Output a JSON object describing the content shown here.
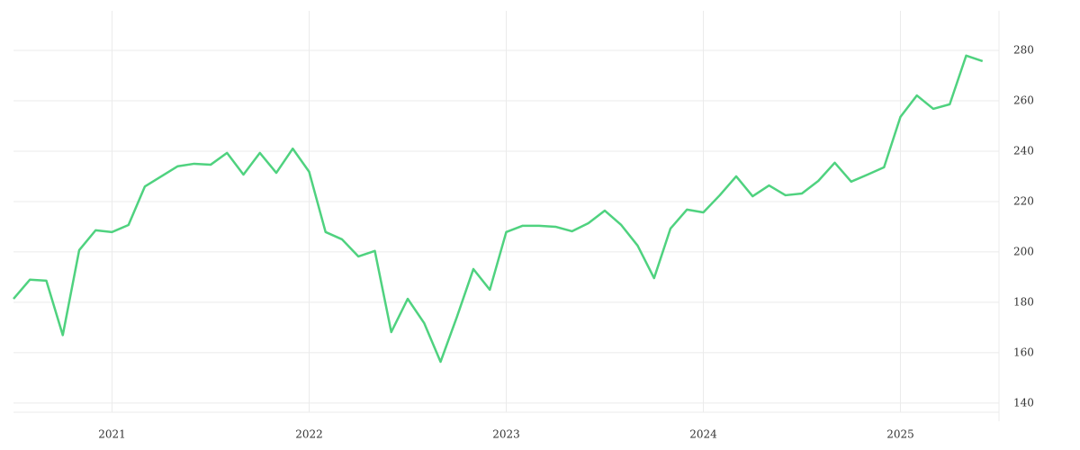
{
  "chart_data": {
    "type": "line",
    "x": [
      "2020-07",
      "2020-08",
      "2020-09",
      "2020-10",
      "2020-11",
      "2020-12",
      "2021-01",
      "2021-02",
      "2021-03",
      "2021-04",
      "2021-05",
      "2021-06",
      "2021-07",
      "2021-08",
      "2021-09",
      "2021-10",
      "2021-11",
      "2021-12",
      "2022-01",
      "2022-02",
      "2022-03",
      "2022-04",
      "2022-05",
      "2022-06",
      "2022-07",
      "2022-08",
      "2022-09",
      "2022-10",
      "2022-11",
      "2022-12",
      "2023-01",
      "2023-02",
      "2023-03",
      "2023-04",
      "2023-05",
      "2023-06",
      "2023-07",
      "2023-08",
      "2023-09",
      "2023-10",
      "2023-11",
      "2023-12",
      "2024-01",
      "2024-02",
      "2024-03",
      "2024-04",
      "2024-05",
      "2024-06",
      "2024-07",
      "2024-08",
      "2024-09",
      "2024-10",
      "2024-11",
      "2024-12",
      "2025-01",
      "2025-02",
      "2025-03",
      "2025-04",
      "2025-05",
      "2025-06"
    ],
    "series": [
      {
        "color": "#4fd27f",
        "values": [
          181.4,
          189,
          188.6,
          167,
          200.7,
          208.6,
          207.9,
          210.7,
          226,
          230,
          234,
          235,
          234.6,
          239.3,
          230.7,
          239.3,
          231.4,
          241,
          231.8,
          207.9,
          205,
          198.2,
          200.4,
          168.2,
          181.4,
          171.8,
          156.4,
          174.3,
          193.2,
          185,
          207.9,
          210.4,
          210.4,
          210,
          208.2,
          211.4,
          216.4,
          210.7,
          202.5,
          189.6,
          209.3,
          216.8,
          215.7,
          222.5,
          230,
          222.1,
          226.4,
          222.5,
          223.2,
          228.2,
          235.4,
          227.9,
          230.7,
          233.6,
          253.6,
          262.1,
          256.8,
          258.6,
          277.9,
          275.7
        ]
      }
    ],
    "xlim": [
      2020.5,
      2025.5
    ],
    "xticks": [
      2021,
      2022,
      2023,
      2024,
      2025
    ],
    "ylim": [
      136.4,
      295.7
    ],
    "yticks": [
      140,
      160,
      180,
      200,
      220,
      240,
      260,
      280
    ],
    "grid": true,
    "y_axis_side": "right"
  }
}
